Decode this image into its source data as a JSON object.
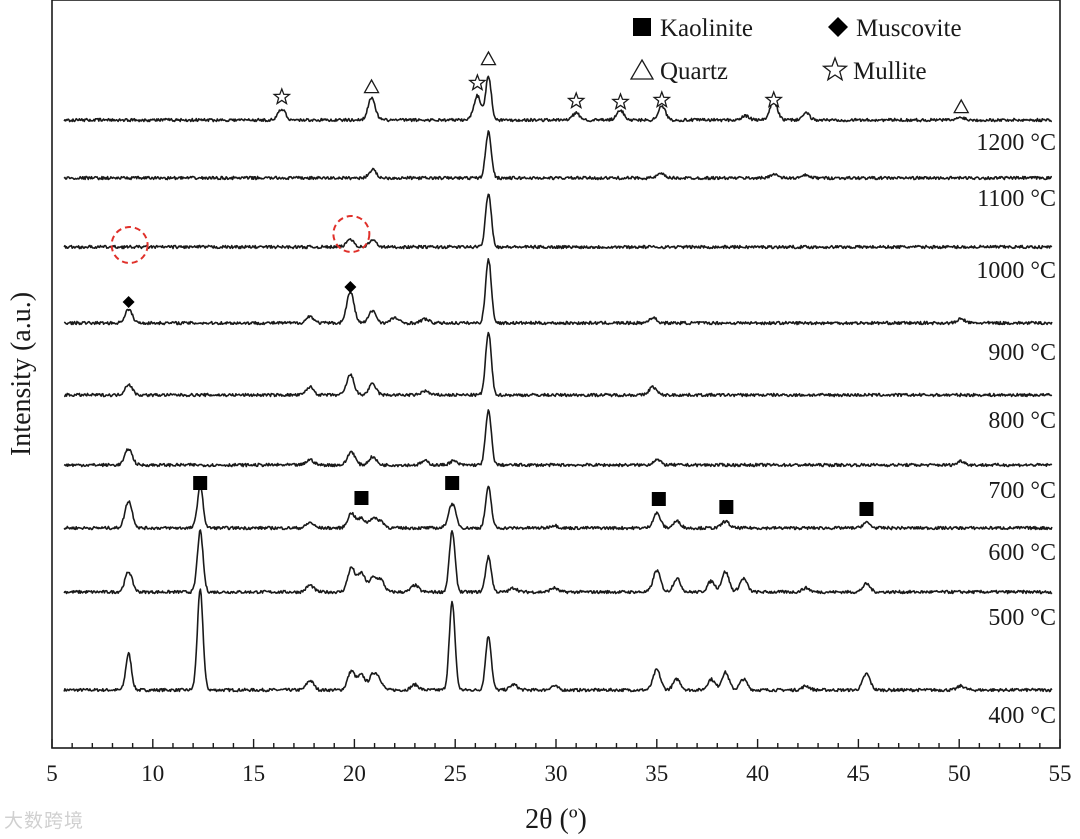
{
  "chart_data": {
    "type": "line",
    "title": "",
    "xlabel": "2θ (º)",
    "ylabel": "Intensity (a.u.)",
    "xlim": [
      5,
      55
    ],
    "xticks": [
      5,
      10,
      15,
      20,
      25,
      30,
      35,
      40,
      45,
      50,
      55
    ],
    "grid": false,
    "legend": {
      "placement": "top-right",
      "entries": [
        {
          "symbol": "filled-square",
          "label": "Kaolinite"
        },
        {
          "symbol": "filled-diamond",
          "label": "Muscovite"
        },
        {
          "symbol": "open-triangle",
          "label": "Quartz"
        },
        {
          "symbol": "open-star",
          "label": "Mullite"
        }
      ]
    },
    "series": [
      {
        "name": "400 °C",
        "peaks": [
          [
            8.8,
            2.7
          ],
          [
            12.35,
            7.4
          ],
          [
            17.8,
            0.7
          ],
          [
            19.85,
            1.4
          ],
          [
            20.35,
            1.1
          ],
          [
            20.9,
            1.0
          ],
          [
            21.2,
            0.8
          ],
          [
            23.0,
            0.4
          ],
          [
            24.85,
            6.5
          ],
          [
            26.65,
            4.0
          ],
          [
            27.9,
            0.4
          ],
          [
            29.9,
            0.3
          ],
          [
            35.0,
            1.5
          ],
          [
            36.0,
            0.8
          ],
          [
            37.7,
            0.8
          ],
          [
            38.4,
            1.3
          ],
          [
            39.3,
            0.8
          ],
          [
            42.4,
            0.3
          ],
          [
            45.4,
            1.2
          ],
          [
            50.1,
            0.3
          ]
        ]
      },
      {
        "name": "500 °C",
        "peaks": [
          [
            8.8,
            1.5
          ],
          [
            12.35,
            4.5
          ],
          [
            17.8,
            0.5
          ],
          [
            19.85,
            1.8
          ],
          [
            20.35,
            1.4
          ],
          [
            20.9,
            1.0
          ],
          [
            21.3,
            0.9
          ],
          [
            23.0,
            0.5
          ],
          [
            24.85,
            4.5
          ],
          [
            26.65,
            2.6
          ],
          [
            27.9,
            0.3
          ],
          [
            29.9,
            0.3
          ],
          [
            35.0,
            1.6
          ],
          [
            36.0,
            1.0
          ],
          [
            37.7,
            0.8
          ],
          [
            38.4,
            1.5
          ],
          [
            39.3,
            1.0
          ],
          [
            42.4,
            0.3
          ],
          [
            45.4,
            0.6
          ]
        ]
      },
      {
        "name": "600 °C",
        "peaks": [
          [
            8.8,
            2.0
          ],
          [
            12.35,
            3.1
          ],
          [
            17.8,
            0.4
          ],
          [
            19.85,
            1.1
          ],
          [
            20.35,
            0.7
          ],
          [
            20.9,
            0.7
          ],
          [
            21.3,
            0.5
          ],
          [
            24.85,
            1.8
          ],
          [
            26.65,
            3.0
          ],
          [
            29.9,
            0.2
          ],
          [
            35.0,
            1.1
          ],
          [
            36.0,
            0.5
          ],
          [
            38.4,
            0.5
          ],
          [
            45.4,
            0.4
          ]
        ]
      },
      {
        "name": "700 °C",
        "peaks": [
          [
            8.8,
            1.2
          ],
          [
            17.8,
            0.4
          ],
          [
            19.85,
            1.0
          ],
          [
            20.9,
            0.6
          ],
          [
            23.5,
            0.3
          ],
          [
            24.9,
            0.3
          ],
          [
            26.65,
            4.0
          ],
          [
            35.0,
            0.4
          ],
          [
            50.1,
            0.3
          ]
        ]
      },
      {
        "name": "800 °C",
        "peaks": [
          [
            8.8,
            0.8
          ],
          [
            17.8,
            0.6
          ],
          [
            19.8,
            1.5
          ],
          [
            20.9,
            0.8
          ],
          [
            23.5,
            0.3
          ],
          [
            26.65,
            4.6
          ],
          [
            34.8,
            0.6
          ]
        ]
      },
      {
        "name": "900 °C",
        "peaks": [
          [
            8.8,
            1.0
          ],
          [
            17.8,
            0.5
          ],
          [
            19.8,
            2.3
          ],
          [
            20.9,
            0.9
          ],
          [
            22.0,
            0.4
          ],
          [
            23.5,
            0.3
          ],
          [
            26.65,
            4.7
          ],
          [
            34.8,
            0.4
          ],
          [
            50.1,
            0.3
          ]
        ]
      },
      {
        "name": "1000 °C",
        "peaks": [
          [
            19.8,
            0.6
          ],
          [
            20.9,
            0.5
          ],
          [
            26.65,
            4.0
          ]
        ]
      },
      {
        "name": "1100 °C",
        "peaks": [
          [
            20.9,
            0.6
          ],
          [
            26.65,
            3.4
          ],
          [
            35.2,
            0.3
          ],
          [
            40.8,
            0.3
          ],
          [
            42.4,
            0.2
          ]
        ]
      },
      {
        "name": "1200 °C",
        "peaks": [
          [
            16.4,
            0.8
          ],
          [
            20.85,
            1.6
          ],
          [
            26.1,
            1.8
          ],
          [
            26.65,
            3.2
          ],
          [
            31.0,
            0.5
          ],
          [
            33.2,
            0.7
          ],
          [
            35.25,
            1.0
          ],
          [
            39.4,
            0.3
          ],
          [
            40.8,
            1.4
          ],
          [
            42.4,
            0.5
          ],
          [
            50.1,
            0.2
          ]
        ]
      }
    ],
    "annotations": {
      "kaolinite": [
        12.35,
        20.35,
        24.85,
        35.1,
        38.45,
        45.4
      ],
      "muscovite": [
        8.8,
        19.8
      ],
      "quartz": [
        20.85,
        26.65,
        50.1
      ],
      "mullite": [
        16.4,
        26.1,
        31.0,
        33.2,
        35.25,
        40.8
      ],
      "dashed_circles": [
        8.8,
        19.8
      ]
    }
  },
  "watermark": "大数跨境"
}
